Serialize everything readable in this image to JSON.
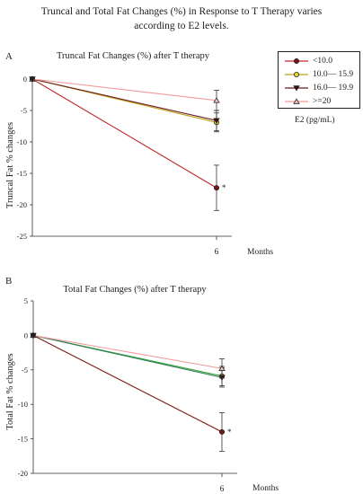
{
  "figure_title": "Truncal and Total Fat Changes (%) in Response to T Therapy varies according to E2 levels.",
  "legend": {
    "items": [
      {
        "label": "<10.0",
        "color": "#c0272d",
        "marker": "circle",
        "marker_fill": "#7a1416"
      },
      {
        "label": "10.0— 15.9",
        "color": "#b8a21a",
        "marker": "circle",
        "marker_fill": "#e8d534"
      },
      {
        "label": "16.0— 19.9",
        "color": "#6b1a1a",
        "marker": "triangle-down",
        "marker_fill": "#3a0d0d"
      },
      {
        "label": ">=20",
        "color": "#f29a9a",
        "marker": "triangle-up",
        "marker_fill": "#f7c9c0"
      }
    ],
    "caption": "E2 (pg/mL)"
  },
  "chart_data": [
    {
      "panel": "A",
      "type": "line",
      "title": "Truncal Fat Changes (%) after T therapy",
      "ylabel": "Truncal Fat % changes",
      "xlabel": "Months",
      "x": [
        0,
        6
      ],
      "x_tick_labels": [
        "",
        "6"
      ],
      "ylim": [
        -25,
        3
      ],
      "yticks": [
        0,
        -5,
        -10,
        -15,
        -20,
        -25
      ],
      "series": [
        {
          "name": "<10.0",
          "color": "#c0272d",
          "marker": "circle",
          "values": [
            0,
            -17.3
          ],
          "error": [
            0,
            3.6
          ],
          "annotation": "*"
        },
        {
          "name": "10.0— 15.9",
          "color": "#b8a21a",
          "marker": "circle",
          "values": [
            0,
            -6.9
          ],
          "error": [
            0,
            1.5
          ]
        },
        {
          "name": "16.0— 19.9",
          "color": "#6b1a1a",
          "marker": "triangle-down",
          "values": [
            0,
            -6.6
          ],
          "error": [
            0,
            1.6
          ]
        },
        {
          "name": ">=20",
          "color": "#f29a9a",
          "marker": "triangle-up",
          "values": [
            0,
            -3.4
          ],
          "error": [
            0,
            1.6
          ]
        }
      ]
    },
    {
      "panel": "B",
      "type": "line",
      "title": "Total Fat Changes (%) after T therapy",
      "ylabel": "Total Fat % changes",
      "xlabel": "Months",
      "x": [
        0,
        6
      ],
      "x_tick_labels": [
        "",
        "6"
      ],
      "ylim": [
        -20,
        5
      ],
      "yticks": [
        5,
        0,
        -5,
        -10,
        -15,
        -20
      ],
      "series": [
        {
          "name": "<10.0",
          "color": "#7a1a1a",
          "marker": "circle",
          "values": [
            0,
            -14.0
          ],
          "error": [
            0,
            2.8
          ],
          "annotation": "*"
        },
        {
          "name": "10.0— 15.9",
          "color": "#3aa53a",
          "marker": "circle",
          "values": [
            0,
            -5.9
          ],
          "error": [
            0,
            1.4
          ]
        },
        {
          "name": "16.0— 19.9",
          "color": "#2e7d5a",
          "marker": "triangle-down",
          "values": [
            0,
            -6.1
          ],
          "error": [
            0,
            1.4
          ]
        },
        {
          "name": ">=20",
          "color": "#f29a9a",
          "marker": "triangle-up",
          "values": [
            0,
            -4.8
          ],
          "error": [
            0,
            1.4
          ]
        }
      ]
    }
  ]
}
